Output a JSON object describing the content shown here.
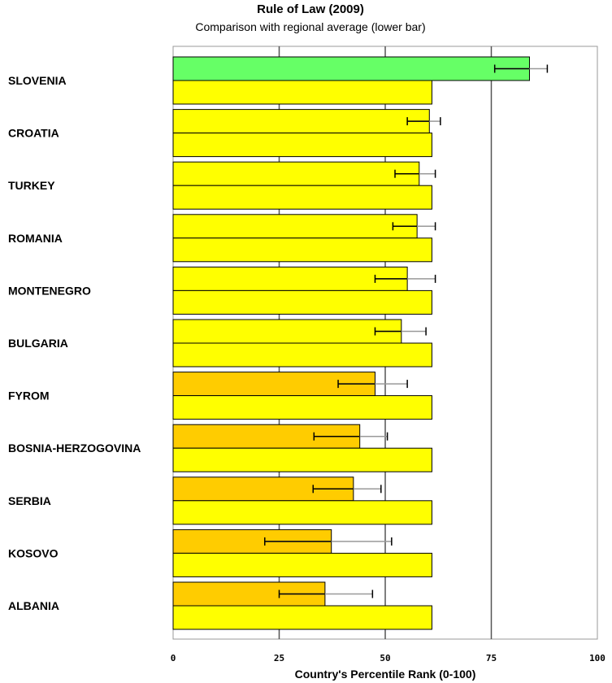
{
  "chart_data": {
    "type": "bar",
    "orientation": "horizontal",
    "title": "Rule of Law (2009)",
    "subtitle": "Comparison with regional average (lower bar)",
    "xlabel": "Country's Percentile Rank (0-100)",
    "xlim": [
      0,
      100
    ],
    "xticks": [
      "0",
      "25",
      "50",
      "75",
      "100"
    ],
    "grid": "vertical lines at 25, 50, 75",
    "categories": [
      "SLOVENIA",
      "CROATIA",
      "TURKEY",
      "ROMANIA",
      "MONTENEGRO",
      "BULGARIA",
      "FYROM",
      "BOSNIA-HERZOGOVINA",
      "SERBIA",
      "KOSOVO",
      "ALBANIA"
    ],
    "values": [
      84.0,
      60.4,
      58.0,
      57.5,
      55.2,
      53.8,
      47.6,
      44.0,
      42.5,
      37.3,
      35.8
    ],
    "error_low": [
      75.8,
      55.2,
      52.3,
      51.8,
      47.6,
      47.6,
      38.9,
      33.2,
      33.0,
      21.6,
      25.0
    ],
    "error_high": [
      88.2,
      63.0,
      61.8,
      61.8,
      61.8,
      59.6,
      55.2,
      50.5,
      49.0,
      51.5,
      47.0
    ],
    "regional_average": 61.0,
    "colors": {
      "top_quartile_bar": "#66ff66",
      "mid_bar": "#ffff00",
      "low_bar": "#ffcc00",
      "regional_bar": "#ffff00",
      "bar_outline": "#000000",
      "gridline": "#555555",
      "error_bar": "#999999",
      "error_cap": "#000000"
    },
    "bar_color_class": [
      "top",
      "mid",
      "mid",
      "mid",
      "mid",
      "mid",
      "low",
      "low",
      "low",
      "low",
      "low"
    ]
  }
}
